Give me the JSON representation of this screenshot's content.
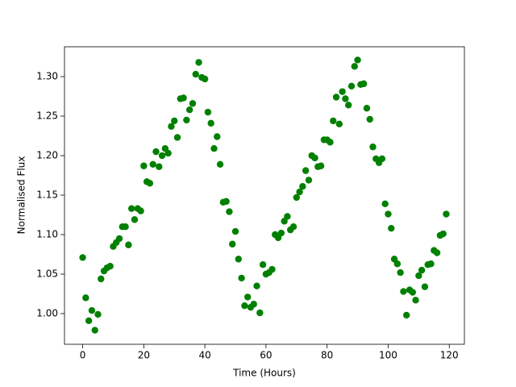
{
  "chart_data": {
    "type": "scatter",
    "xlabel": "Time (Hours)",
    "ylabel": "Normalised Flux",
    "color": "#008000",
    "grid": false,
    "x": [
      0,
      1,
      2,
      3,
      4,
      5,
      6,
      7,
      8,
      9,
      10,
      11,
      12,
      13,
      14,
      15,
      16,
      17,
      18,
      19,
      20,
      21,
      22,
      23,
      24,
      25,
      26,
      27,
      28,
      29,
      30,
      31,
      32,
      33,
      34,
      35,
      36,
      37,
      38,
      39,
      40,
      41,
      42,
      43,
      44,
      45,
      46,
      47,
      48,
      49,
      50,
      51,
      52,
      53,
      54,
      55,
      56,
      57,
      58,
      59,
      60,
      61,
      62,
      63,
      64,
      65,
      66,
      67,
      68,
      69,
      70,
      71,
      72,
      73,
      74,
      75,
      76,
      77,
      78,
      79,
      80,
      81,
      82,
      83,
      84,
      85,
      86,
      87,
      88,
      89,
      90,
      91,
      92,
      93,
      94,
      95,
      96,
      97,
      98,
      99,
      100,
      101,
      102,
      103,
      104,
      105,
      106,
      107,
      108,
      109,
      110,
      111,
      112,
      113,
      114,
      115,
      116,
      117,
      118,
      119
    ],
    "values": [
      1.071,
      1.02,
      0.991,
      1.004,
      0.979,
      0.999,
      1.044,
      1.054,
      1.058,
      1.06,
      1.085,
      1.09,
      1.095,
      1.11,
      1.11,
      1.087,
      1.133,
      1.119,
      1.133,
      1.13,
      1.187,
      1.167,
      1.165,
      1.189,
      1.205,
      1.186,
      1.2,
      1.209,
      1.203,
      1.237,
      1.244,
      1.223,
      1.272,
      1.273,
      1.245,
      1.258,
      1.266,
      1.303,
      1.318,
      1.299,
      1.297,
      1.255,
      1.241,
      1.209,
      1.224,
      1.189,
      1.141,
      1.142,
      1.129,
      1.088,
      1.104,
      1.069,
      1.045,
      1.01,
      1.021,
      1.008,
      1.012,
      1.035,
      1.001,
      1.062,
      1.05,
      1.052,
      1.056,
      1.1,
      1.096,
      1.102,
      1.117,
      1.123,
      1.106,
      1.11,
      1.147,
      1.154,
      1.161,
      1.181,
      1.169,
      1.2,
      1.197,
      1.186,
      1.187,
      1.22,
      1.22,
      1.217,
      1.244,
      1.274,
      1.24,
      1.281,
      1.272,
      1.264,
      1.288,
      1.313,
      1.321,
      1.29,
      1.291,
      1.26,
      1.246,
      1.211,
      1.196,
      1.191,
      1.196,
      1.139,
      1.126,
      1.108,
      1.069,
      1.063,
      1.052,
      1.028,
      0.998,
      1.03,
      1.027,
      1.017,
      1.048,
      1.055,
      1.034,
      1.062,
      1.063,
      1.08,
      1.077,
      1.099,
      1.101,
      1.126
    ],
    "xlim": [
      -5.95,
      124.95
    ],
    "ylim": [
      0.9612,
      1.3378
    ],
    "xticks": [
      0,
      20,
      40,
      60,
      80,
      100,
      120
    ],
    "yticks": [
      {
        "value": 1,
        "label": "1.00"
      },
      1.05,
      {
        "value": 1.1,
        "label": "1.10"
      },
      1.15,
      {
        "value": 1.2,
        "label": "1.20"
      },
      1.25,
      {
        "value": 1.3,
        "label": "1.30"
      }
    ]
  }
}
